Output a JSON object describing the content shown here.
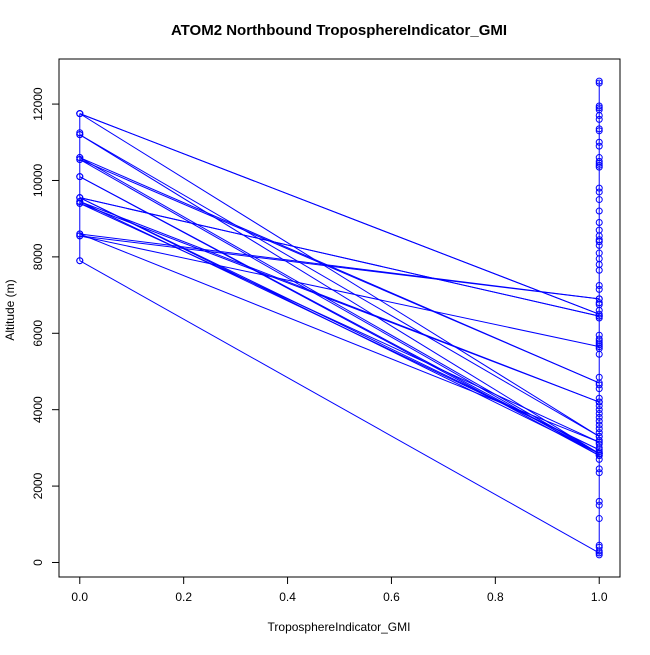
{
  "chart_data": {
    "type": "line",
    "title": "ATOM2 Northbound TroposphereIndicator_GMI",
    "xlabel": "TroposphereIndicator_GMI",
    "ylabel": "Altitude (m)",
    "xlim": [
      -0.04,
      1.04
    ],
    "ylim": [
      -380,
      13180
    ],
    "x_ticks": [
      0.0,
      0.2,
      0.4,
      0.6,
      0.8,
      1.0
    ],
    "x_tick_labels": [
      "0.0",
      "0.2",
      "0.4",
      "0.6",
      "0.8",
      "1.0"
    ],
    "y_ticks": [
      0,
      2000,
      4000,
      6000,
      8000,
      10000,
      12000
    ],
    "y_tick_labels": [
      "0",
      "2000",
      "4000",
      "6000",
      "8000",
      "10000",
      "12000"
    ],
    "grid": false,
    "legend": "none",
    "color": "#0000ff",
    "series": [
      {
        "x": [
          0,
          0,
          0,
          0,
          0,
          0,
          0,
          0,
          0,
          0,
          0,
          0
        ],
        "y": [
          7900,
          8550,
          8600,
          9400,
          9450,
          9550,
          10100,
          10550,
          10600,
          11200,
          11250,
          11750
        ]
      },
      {
        "x": [
          1,
          1,
          1,
          1,
          1,
          1,
          1,
          1,
          1,
          1,
          1,
          1,
          1,
          1,
          1,
          1,
          1,
          1,
          1,
          1,
          1,
          1,
          1,
          1,
          1,
          1,
          1,
          1,
          1,
          1,
          1,
          1,
          1,
          1,
          1,
          1,
          1,
          1,
          1,
          1,
          1,
          1,
          1,
          1,
          1,
          1,
          1,
          1,
          1,
          1,
          1,
          1,
          1,
          1,
          1,
          1,
          1,
          1,
          1,
          1,
          1,
          1,
          1,
          1,
          1,
          1,
          1,
          1,
          1,
          1,
          1,
          1,
          1,
          1,
          1,
          1
        ],
        "y": [
          200,
          250,
          300,
          400,
          450,
          1150,
          1500,
          1600,
          2350,
          2450,
          2700,
          2800,
          2850,
          2900,
          3000,
          3100,
          3200,
          3300,
          3400,
          3500,
          3600,
          3700,
          3800,
          3900,
          4000,
          4100,
          4200,
          4300,
          4550,
          4650,
          4850,
          5450,
          5600,
          5700,
          5750,
          5800,
          5850,
          5950,
          6400,
          6450,
          6600,
          6750,
          6800,
          6900,
          7150,
          7250,
          7650,
          7800,
          7950,
          8100,
          8300,
          8400,
          8450,
          8550,
          8700,
          8900,
          9200,
          9500,
          9700,
          9800,
          10350,
          10400,
          10450,
          10500,
          10600,
          10900,
          11000,
          11300,
          11350,
          11600,
          11700,
          11850,
          11900,
          11950,
          12600,
          12550
        ]
      },
      {
        "name": "",
        "x": [
          0,
          1,
          0,
          1,
          0,
          1,
          0,
          1,
          0,
          1,
          0,
          1,
          0,
          1,
          0,
          1,
          0,
          1,
          0,
          1,
          0,
          1,
          0,
          1
        ],
        "y": [
          11750,
          6500,
          11750,
          3300,
          11200,
          2850,
          10600,
          4700,
          10550,
          2800,
          10100,
          2850,
          9550,
          6450,
          9550,
          2950,
          9450,
          4200,
          9400,
          3150,
          8600,
          6900,
          8550,
          5650
        ],
        "_comment_ignore": ""
      },
      {
        "x": [
          0,
          1
        ],
        "y": [
          7900,
          250
        ]
      }
    ]
  }
}
